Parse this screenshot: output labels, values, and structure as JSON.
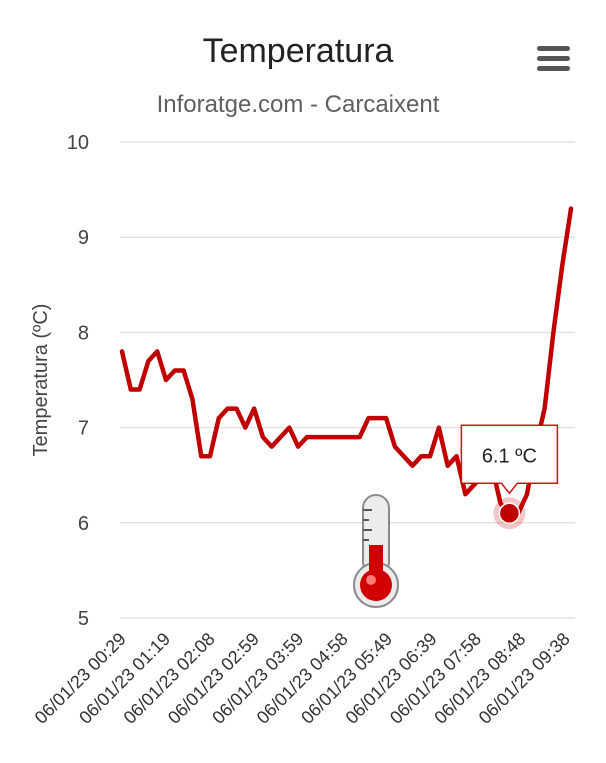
{
  "chart_data": {
    "type": "line",
    "title": "Temperatura",
    "subtitle": "Inforatge.com - Carcaixent",
    "ylabel": "Temperatura (ºC)",
    "xlabel": "",
    "ylim": [
      5,
      10
    ],
    "yticks": [
      "5",
      "6",
      "7",
      "8",
      "9",
      "10"
    ],
    "grid": true,
    "color": "#c00000",
    "x_tick_labels": [
      "06/01/23 00:29",
      "06/01/23 01:19",
      "06/01/23 02:08",
      "06/01/23 02:59",
      "06/01/23 03:59",
      "06/01/23 04:58",
      "06/01/23 05:49",
      "06/01/23 06:39",
      "06/01/23 07:58",
      "06/01/23 08:48",
      "06/01/23 09:38"
    ],
    "series": [
      {
        "values": [
          7.8,
          7.4,
          7.4,
          7.7,
          7.8,
          7.5,
          7.6,
          7.6,
          7.3,
          6.7,
          6.7,
          7.1,
          7.2,
          7.2,
          7.0,
          7.2,
          6.9,
          6.8,
          6.9,
          7.0,
          6.8,
          6.9,
          6.9,
          6.9,
          6.9,
          6.9,
          6.9,
          6.9,
          7.1,
          7.1,
          7.1,
          6.8,
          6.7,
          6.6,
          6.7,
          6.7,
          7.0,
          6.6,
          6.7,
          6.3,
          6.4,
          6.5,
          6.6,
          6.2,
          6.1,
          6.1,
          6.3,
          6.8,
          7.2,
          8.0,
          8.7,
          9.3
        ]
      }
    ],
    "tooltip": {
      "index": 44,
      "text": "6.1 ºC"
    }
  },
  "icons": {
    "menu": "hamburger-menu-icon",
    "thermometer": "thermometer-icon"
  }
}
